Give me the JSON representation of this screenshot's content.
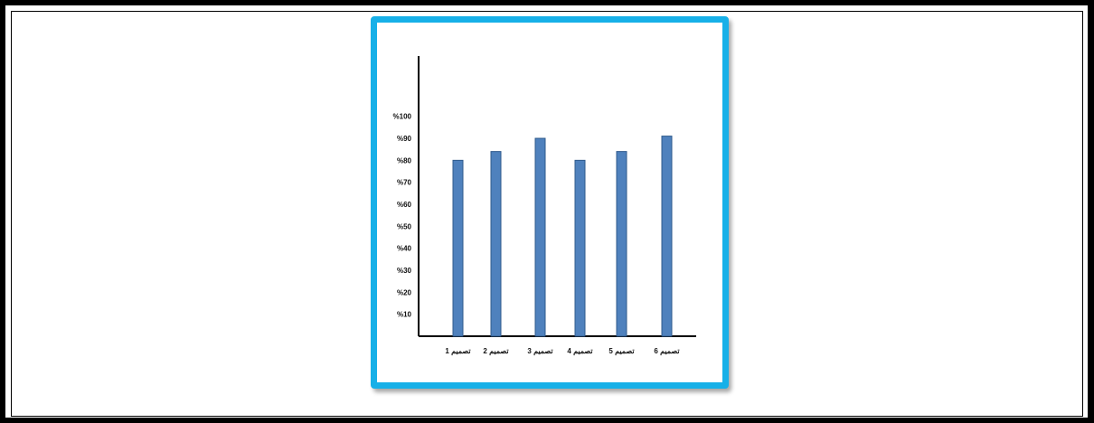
{
  "chart_data": {
    "type": "bar",
    "categories": [
      "تصميم 1",
      "تصميم 2",
      "تصميم 3",
      "تصميم 4",
      "تصميم 5",
      "تصميم 6"
    ],
    "values": [
      80,
      84,
      90,
      80,
      84,
      91
    ],
    "ylim": [
      0,
      100
    ],
    "yticks": [
      "%10",
      "%20",
      "%30",
      "%40",
      "%50",
      "%60",
      "%70",
      "%80",
      "%90",
      "%100"
    ],
    "title": "",
    "xlabel": "",
    "ylabel": "",
    "grid": false,
    "bar_color": "#4f81bd",
    "bar_edge_color": "#2f5a8c",
    "frame_color": "#17b0e8"
  }
}
